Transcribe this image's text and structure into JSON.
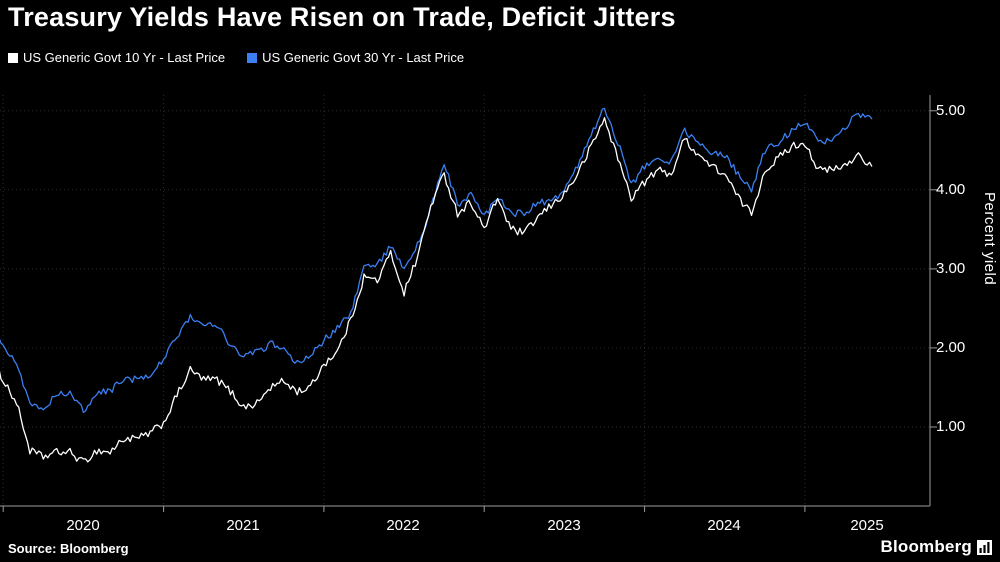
{
  "title": "Treasury Yields Have Risen on Trade, Deficit Jitters",
  "legend": [
    {
      "label": "US Generic Govt 10 Yr - Last Price",
      "color": "#ffffff"
    },
    {
      "label": "US Generic Govt 30 Yr - Last Price",
      "color": "#3b7ff2"
    }
  ],
  "y_axis": {
    "label": "Percent yield",
    "ticks": [
      "5.00",
      "4.00",
      "3.00",
      "2.00",
      "1.00"
    ]
  },
  "x_axis": {
    "ticks": [
      "2020",
      "2021",
      "2022",
      "2023",
      "2024",
      "2025"
    ]
  },
  "source": "Source: Bloomberg",
  "brand": "Bloomberg",
  "chart_data": {
    "type": "line",
    "title": "Treasury Yields Have Risen on Trade, Deficit Jitters",
    "ylabel": "Percent yield",
    "ylim": [
      0,
      5.2
    ],
    "y_ticks": [
      1,
      2,
      3,
      4,
      5
    ],
    "x_domain": [
      2019.98,
      2025.78
    ],
    "x_grid_years": [
      2020,
      2021,
      2022,
      2023,
      2024,
      2025
    ],
    "x_start_year": 2019.9167,
    "x_step_years": 0.083333,
    "x_unit": "monthly from Dec 2019 to Jun 2025",
    "series": [
      {
        "name": "US Generic Govt 10 Yr - Last Price",
        "color": "#ffffff",
        "values": [
          1.9,
          1.6,
          1.3,
          0.7,
          0.62,
          0.68,
          0.68,
          0.55,
          0.7,
          0.68,
          0.85,
          0.85,
          0.92,
          1.05,
          1.4,
          1.72,
          1.6,
          1.6,
          1.45,
          1.25,
          1.3,
          1.5,
          1.58,
          1.45,
          1.5,
          1.8,
          1.95,
          2.35,
          2.9,
          2.85,
          3.2,
          2.7,
          3.15,
          3.8,
          4.2,
          3.7,
          3.85,
          3.5,
          3.9,
          3.5,
          3.45,
          3.65,
          3.8,
          3.95,
          4.2,
          4.55,
          4.9,
          4.4,
          3.9,
          4.1,
          4.25,
          4.2,
          4.65,
          4.45,
          4.3,
          4.2,
          3.9,
          3.7,
          4.25,
          4.4,
          4.55,
          4.6,
          4.25,
          4.25,
          4.3,
          4.45,
          4.3
        ]
      },
      {
        "name": "US Generic Govt 30 Yr - Last Price",
        "color": "#3b7ff2",
        "values": [
          2.35,
          2.05,
          1.8,
          1.3,
          1.25,
          1.4,
          1.45,
          1.2,
          1.45,
          1.45,
          1.6,
          1.6,
          1.65,
          1.85,
          2.15,
          2.4,
          2.3,
          2.28,
          2.05,
          1.9,
          1.95,
          2.05,
          2.0,
          1.8,
          1.9,
          2.1,
          2.25,
          2.45,
          3.0,
          3.05,
          3.3,
          3.0,
          3.3,
          3.75,
          4.35,
          3.8,
          3.95,
          3.65,
          3.9,
          3.7,
          3.7,
          3.85,
          3.85,
          4.0,
          4.3,
          4.7,
          5.05,
          4.6,
          4.05,
          4.3,
          4.4,
          4.35,
          4.75,
          4.6,
          4.45,
          4.45,
          4.2,
          4.0,
          4.5,
          4.6,
          4.75,
          4.85,
          4.65,
          4.6,
          4.8,
          4.95,
          4.9
        ]
      }
    ]
  }
}
